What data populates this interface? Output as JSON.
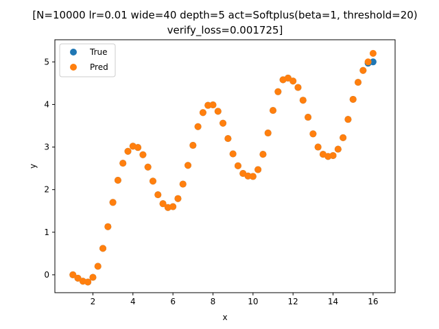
{
  "chart_data": {
    "type": "scatter",
    "title_line1": "[N=10000 lr=0.01 wide=40 depth=5 act=Softplus(beta=1, threshold=20)",
    "title_line2": "verify_loss=0.001725]",
    "xlabel": "x",
    "ylabel": "y",
    "xlim": [
      0.1,
      17.1
    ],
    "ylim": [
      -0.42,
      5.52
    ],
    "xticks": [
      2,
      4,
      6,
      8,
      10,
      12,
      14,
      16
    ],
    "yticks": [
      0,
      1,
      2,
      3,
      4,
      5
    ],
    "grid": false,
    "legend_position": "top-left",
    "colors": {
      "true": "#1f77b4",
      "pred": "#ff7f0e"
    },
    "series": [
      {
        "name": "True",
        "x": [
          1.0,
          1.25,
          1.5,
          1.75,
          2.0,
          2.25,
          2.5,
          2.75,
          3.0,
          3.25,
          3.5,
          3.75,
          4.0,
          4.25,
          4.5,
          4.75,
          5.0,
          5.25,
          5.5,
          5.75,
          6.0,
          6.25,
          6.5,
          6.75,
          7.0,
          7.25,
          7.5,
          7.75,
          8.0,
          8.25,
          8.5,
          8.75,
          9.0,
          9.25,
          9.5,
          9.75,
          10.0,
          10.25,
          10.5,
          10.75,
          11.0,
          11.25,
          11.5,
          11.75,
          12.0,
          12.25,
          12.5,
          12.75,
          13.0,
          13.25,
          13.5,
          13.75,
          14.0,
          14.25,
          14.5,
          14.75,
          15.0,
          15.25,
          15.5,
          15.75,
          16.0
        ],
        "y": [
          0.0,
          -0.08,
          -0.15,
          -0.17,
          -0.06,
          0.2,
          0.62,
          1.13,
          1.7,
          2.22,
          2.62,
          2.9,
          3.02,
          2.99,
          2.82,
          2.53,
          2.2,
          1.88,
          1.67,
          1.58,
          1.6,
          1.79,
          2.13,
          2.57,
          3.04,
          3.48,
          3.81,
          3.98,
          3.99,
          3.84,
          3.56,
          3.2,
          2.84,
          2.56,
          2.38,
          2.32,
          2.31,
          2.47,
          2.83,
          3.33,
          3.86,
          4.3,
          4.58,
          4.62,
          4.55,
          4.4,
          4.1,
          3.7,
          3.31,
          3.0,
          2.83,
          2.78,
          2.8,
          2.95,
          3.22,
          3.65,
          4.12,
          4.52,
          4.8,
          4.97,
          5.0
        ]
      },
      {
        "name": "Pred",
        "x": [
          1.0,
          1.25,
          1.5,
          1.75,
          2.0,
          2.25,
          2.5,
          2.75,
          3.0,
          3.25,
          3.5,
          3.75,
          4.0,
          4.25,
          4.5,
          4.75,
          5.0,
          5.25,
          5.5,
          5.75,
          6.0,
          6.25,
          6.5,
          6.75,
          7.0,
          7.25,
          7.5,
          7.75,
          8.0,
          8.25,
          8.5,
          8.75,
          9.0,
          9.25,
          9.5,
          9.75,
          10.0,
          10.25,
          10.5,
          10.75,
          11.0,
          11.25,
          11.5,
          11.75,
          12.0,
          12.25,
          12.5,
          12.75,
          13.0,
          13.25,
          13.5,
          13.75,
          14.0,
          14.25,
          14.5,
          14.75,
          15.0,
          15.25,
          15.5,
          15.75,
          16.0
        ],
        "y": [
          0.0,
          -0.08,
          -0.15,
          -0.17,
          -0.06,
          0.2,
          0.62,
          1.13,
          1.7,
          2.22,
          2.62,
          2.9,
          3.02,
          2.99,
          2.82,
          2.53,
          2.2,
          1.88,
          1.67,
          1.58,
          1.6,
          1.79,
          2.13,
          2.57,
          3.04,
          3.48,
          3.81,
          3.98,
          3.99,
          3.84,
          3.56,
          3.2,
          2.84,
          2.56,
          2.38,
          2.32,
          2.31,
          2.47,
          2.83,
          3.33,
          3.86,
          4.3,
          4.58,
          4.62,
          4.55,
          4.4,
          4.1,
          3.7,
          3.31,
          3.0,
          2.83,
          2.78,
          2.8,
          2.95,
          3.22,
          3.65,
          4.12,
          4.52,
          4.8,
          5.0,
          5.2
        ]
      }
    ]
  }
}
